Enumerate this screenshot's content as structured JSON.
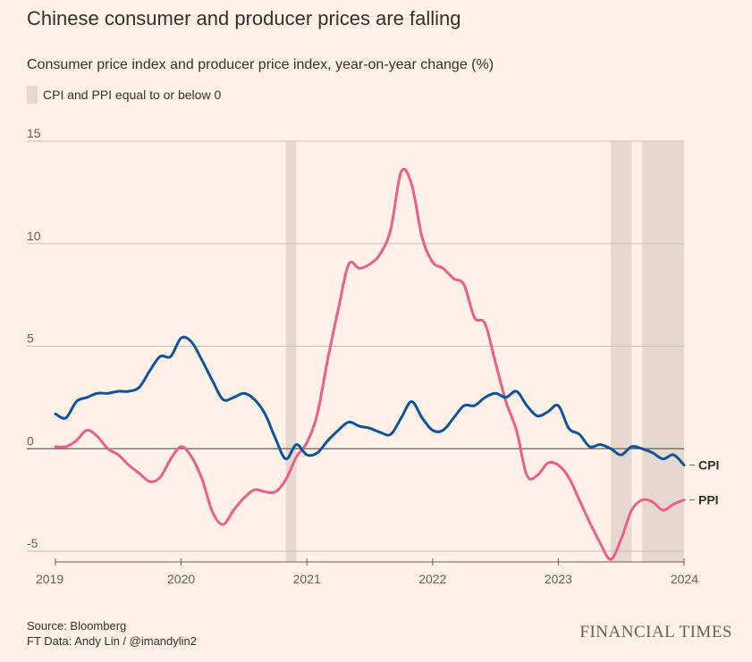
{
  "header": {
    "title": "Chinese consumer and producer prices are falling",
    "subtitle": "Consumer price index and producer price index, year-on-year change (%)",
    "legend_label": "CPI and PPI equal to or below 0"
  },
  "footer": {
    "source": "Source: Bloomberg",
    "credit": "FT Data: Andy Lin / @imandylin2",
    "brand": "FINANCIAL TIMES"
  },
  "colors": {
    "background": "#FFF1E5",
    "cpi": "#0F5499",
    "ppi": "#EB5E8D",
    "shade": "#E5D8CC",
    "grid": "#C7BFB7",
    "zero_line": "#66605C"
  },
  "chart_data": {
    "type": "line",
    "title": "Chinese consumer and producer prices are falling",
    "subtitle": "Consumer price index and producer price index, year-on-year change (%)",
    "xlabel": "",
    "ylabel": "",
    "xlim": [
      2019.0,
      2024.0
    ],
    "ylim": [
      -5,
      15
    ],
    "yticks": [
      15,
      10,
      5,
      0,
      -5
    ],
    "xticks": [
      2019,
      2020,
      2021,
      2022,
      2023,
      2024
    ],
    "xtick_labels": [
      "2019",
      "2020",
      "2021",
      "2022",
      "2023",
      "2024"
    ],
    "ytick_labels": [
      "15",
      "10",
      "5",
      "0",
      "-5"
    ],
    "grid": true,
    "shaded_regions": [
      {
        "start": 2020.833,
        "end": 2020.917
      },
      {
        "start": 2023.417,
        "end": 2023.583
      },
      {
        "start": 2023.667,
        "end": 2024.0
      }
    ],
    "series": [
      {
        "name": "CPI",
        "x": [
          2019.0,
          2019.083,
          2019.167,
          2019.25,
          2019.333,
          2019.417,
          2019.5,
          2019.583,
          2019.667,
          2019.75,
          2019.833,
          2019.917,
          2020.0,
          2020.083,
          2020.167,
          2020.25,
          2020.333,
          2020.417,
          2020.5,
          2020.583,
          2020.667,
          2020.75,
          2020.833,
          2020.917,
          2021.0,
          2021.083,
          2021.167,
          2021.25,
          2021.333,
          2021.417,
          2021.5,
          2021.583,
          2021.667,
          2021.75,
          2021.833,
          2021.917,
          2022.0,
          2022.083,
          2022.167,
          2022.25,
          2022.333,
          2022.417,
          2022.5,
          2022.583,
          2022.667,
          2022.75,
          2022.833,
          2022.917,
          2023.0,
          2023.083,
          2023.167,
          2023.25,
          2023.333,
          2023.417,
          2023.5,
          2023.583,
          2023.667,
          2023.75,
          2023.833,
          2023.917,
          2024.0
        ],
        "values": [
          1.7,
          1.5,
          2.3,
          2.5,
          2.7,
          2.7,
          2.8,
          2.8,
          3.0,
          3.8,
          4.5,
          4.5,
          5.4,
          5.2,
          4.3,
          3.3,
          2.4,
          2.5,
          2.7,
          2.4,
          1.7,
          0.5,
          -0.5,
          0.2,
          -0.3,
          -0.2,
          0.4,
          0.9,
          1.3,
          1.1,
          1.0,
          0.8,
          0.7,
          1.5,
          2.3,
          1.5,
          0.9,
          0.9,
          1.5,
          2.1,
          2.1,
          2.5,
          2.7,
          2.5,
          2.8,
          2.1,
          1.6,
          1.8,
          2.1,
          1.0,
          0.7,
          0.1,
          0.2,
          0.0,
          -0.3,
          0.1,
          0.0,
          -0.2,
          -0.5,
          -0.3,
          -0.8
        ]
      },
      {
        "name": "PPI",
        "x": [
          2019.0,
          2019.083,
          2019.167,
          2019.25,
          2019.333,
          2019.417,
          2019.5,
          2019.583,
          2019.667,
          2019.75,
          2019.833,
          2019.917,
          2020.0,
          2020.083,
          2020.167,
          2020.25,
          2020.333,
          2020.417,
          2020.5,
          2020.583,
          2020.667,
          2020.75,
          2020.833,
          2020.917,
          2021.0,
          2021.083,
          2021.167,
          2021.25,
          2021.333,
          2021.417,
          2021.5,
          2021.583,
          2021.667,
          2021.75,
          2021.833,
          2021.917,
          2022.0,
          2022.083,
          2022.167,
          2022.25,
          2022.333,
          2022.417,
          2022.5,
          2022.583,
          2022.667,
          2022.75,
          2022.833,
          2022.917,
          2023.0,
          2023.083,
          2023.167,
          2023.25,
          2023.333,
          2023.417,
          2023.5,
          2023.583,
          2023.667,
          2023.75,
          2023.833,
          2023.917,
          2024.0
        ],
        "values": [
          0.1,
          0.1,
          0.4,
          0.9,
          0.6,
          0.0,
          -0.3,
          -0.8,
          -1.2,
          -1.6,
          -1.4,
          -0.5,
          0.1,
          -0.4,
          -1.5,
          -3.1,
          -3.7,
          -3.0,
          -2.4,
          -2.0,
          -2.1,
          -2.1,
          -1.5,
          -0.4,
          0.3,
          1.7,
          4.4,
          6.8,
          9.0,
          8.8,
          9.0,
          9.5,
          10.7,
          13.5,
          12.9,
          10.3,
          9.1,
          8.8,
          8.3,
          8.0,
          6.4,
          6.1,
          4.2,
          2.3,
          0.9,
          -1.3,
          -1.3,
          -0.7,
          -0.8,
          -1.4,
          -2.5,
          -3.6,
          -4.6,
          -5.4,
          -4.4,
          -3.0,
          -2.5,
          -2.6,
          -3.0,
          -2.7,
          -2.5
        ]
      }
    ],
    "end_labels": [
      "CPI",
      "PPI"
    ]
  }
}
